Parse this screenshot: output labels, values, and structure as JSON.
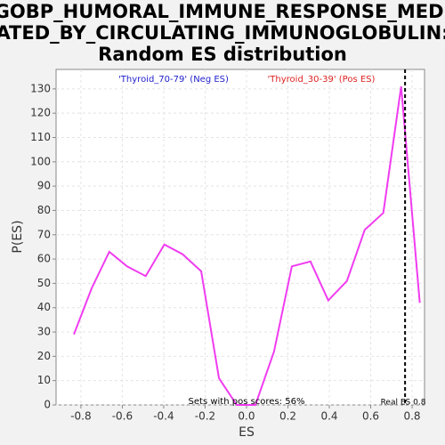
{
  "chart_data": {
    "type": "line",
    "title": [
      "GOBP_HUMORAL_IMMUNE_RESPONSE_MEDI",
      "ATED_BY_CIRCULATING_IMMUNOGLOBULIN:",
      "Random ES distribution"
    ],
    "x_label": "ES",
    "y_label": "P(ES)",
    "neg_label": "'Thyroid_70-79' (Neg ES)",
    "neg_color": "#2222cc",
    "pos_label": "'Thyroid_30-39' (Pos ES)",
    "pos_color": "#dd2222",
    "annotation": "Sets with pos scores: 56%",
    "real_es_label": "Real ES 0.8",
    "real_es": 0.766,
    "x": [
      -0.834,
      -0.748,
      -0.663,
      -0.577,
      -0.487,
      -0.397,
      -0.309,
      -0.219,
      -0.133,
      -0.047,
      0.043,
      0.133,
      0.219,
      0.309,
      0.395,
      0.485,
      0.571,
      0.661,
      0.747,
      0.837
    ],
    "series": [
      {
        "color": "#f03cf0",
        "values": [
          29,
          48,
          63,
          57,
          53,
          66,
          62,
          55,
          11,
          0,
          0,
          22,
          57,
          59,
          43,
          51,
          72,
          79,
          131,
          42
        ]
      }
    ],
    "xlim": [
      -0.92,
      0.86
    ],
    "ylim": [
      0,
      138
    ],
    "xticks": [
      -0.8,
      -0.6,
      -0.4,
      -0.2,
      {
        "value": 0,
        "label": "0.0"
      },
      0.2,
      0.4,
      0.6,
      0.8
    ],
    "yticks": [
      0,
      10,
      20,
      30,
      40,
      50,
      60,
      70,
      80,
      90,
      100,
      110,
      120,
      130
    ],
    "grid": true
  }
}
